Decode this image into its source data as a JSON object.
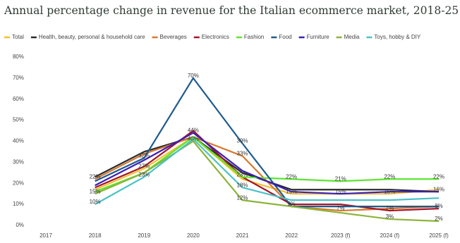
{
  "chart_data": {
    "type": "line",
    "title": "Annual percentage change in revenue for the Italian ecommerce market, 2018-25",
    "categories": [
      "2017",
      "2018",
      "2019",
      "2020",
      "2021",
      "2022",
      "2023 (f)",
      "2024 (f)",
      "2025 (f)"
    ],
    "series": [
      {
        "name": "Total",
        "color": "#f2c12e",
        "values": [
          null,
          17,
          27,
          42,
          22,
          15,
          15,
          15,
          17
        ],
        "value_labels": [
          null,
          null,
          "27%",
          null,
          null,
          "15%",
          "15%",
          "15%",
          null
        ]
      },
      {
        "name": "Health, beauty, personal & household care",
        "color": "#2b2b2b",
        "values": [
          null,
          23,
          35,
          42,
          25,
          17,
          17,
          17,
          16
        ],
        "value_labels": [
          null,
          null,
          null,
          null,
          null,
          null,
          null,
          null,
          "16%"
        ]
      },
      {
        "name": "Beverages",
        "color": "#d9782d",
        "values": [
          null,
          22,
          34,
          42,
          33,
          9,
          7,
          8,
          9
        ],
        "value_labels": [
          null,
          "22%",
          null,
          null,
          "33%",
          "9%",
          "7%",
          null,
          null
        ]
      },
      {
        "name": "Electronics",
        "color": "#a3152a",
        "values": [
          null,
          18,
          28,
          45,
          23,
          10,
          10,
          7,
          8
        ],
        "value_labels": [
          null,
          null,
          null,
          null,
          "23%",
          null,
          null,
          "7%",
          "8%"
        ]
      },
      {
        "name": "Fashion",
        "color": "#5ce62e",
        "values": [
          null,
          16,
          25,
          42,
          23,
          22,
          21,
          22,
          22
        ],
        "value_labels": [
          null,
          null,
          null,
          null,
          null,
          "22%",
          "21%",
          "22%",
          "22%"
        ]
      },
      {
        "name": "Food",
        "color": "#1f5b8c",
        "values": [
          null,
          21,
          32,
          70,
          39,
          9,
          9,
          9,
          9
        ],
        "value_labels": [
          null,
          null,
          "32%",
          "70%",
          "39%",
          null,
          null,
          null,
          null
        ]
      },
      {
        "name": "Furniture",
        "color": "#3a1fb8",
        "values": [
          null,
          19,
          31,
          44,
          26,
          16,
          15,
          16,
          16
        ],
        "value_labels": [
          null,
          null,
          null,
          "44%",
          null,
          null,
          null,
          null,
          null
        ]
      },
      {
        "name": "Media",
        "color": "#8cb33a",
        "values": [
          null,
          15,
          25,
          40,
          12,
          9,
          6,
          3,
          2
        ],
        "value_labels": [
          null,
          "15%",
          null,
          "40%",
          "12%",
          null,
          null,
          "3%",
          "2%"
        ]
      },
      {
        "name": "Toys, hobby & DIY",
        "color": "#49c2c9",
        "values": [
          null,
          10,
          23,
          41,
          18,
          12,
          12,
          12,
          13
        ],
        "value_labels": [
          null,
          "10%",
          "23%",
          null,
          "18%",
          null,
          null,
          null,
          null
        ]
      }
    ],
    "ylim": [
      0,
      80
    ],
    "yticks": [
      {
        "value": 0,
        "label": "0%"
      },
      {
        "value": 10,
        "label": "10%"
      },
      {
        "value": 20,
        "label": "20%"
      },
      {
        "value": 30,
        "label": "30%"
      },
      {
        "value": 40,
        "label": "40%"
      },
      {
        "value": 50,
        "label": "50%"
      },
      {
        "value": 60,
        "label": "60%"
      },
      {
        "value": 70,
        "label": "70%"
      },
      {
        "value": 80,
        "label": "80%"
      }
    ],
    "grid": false
  }
}
